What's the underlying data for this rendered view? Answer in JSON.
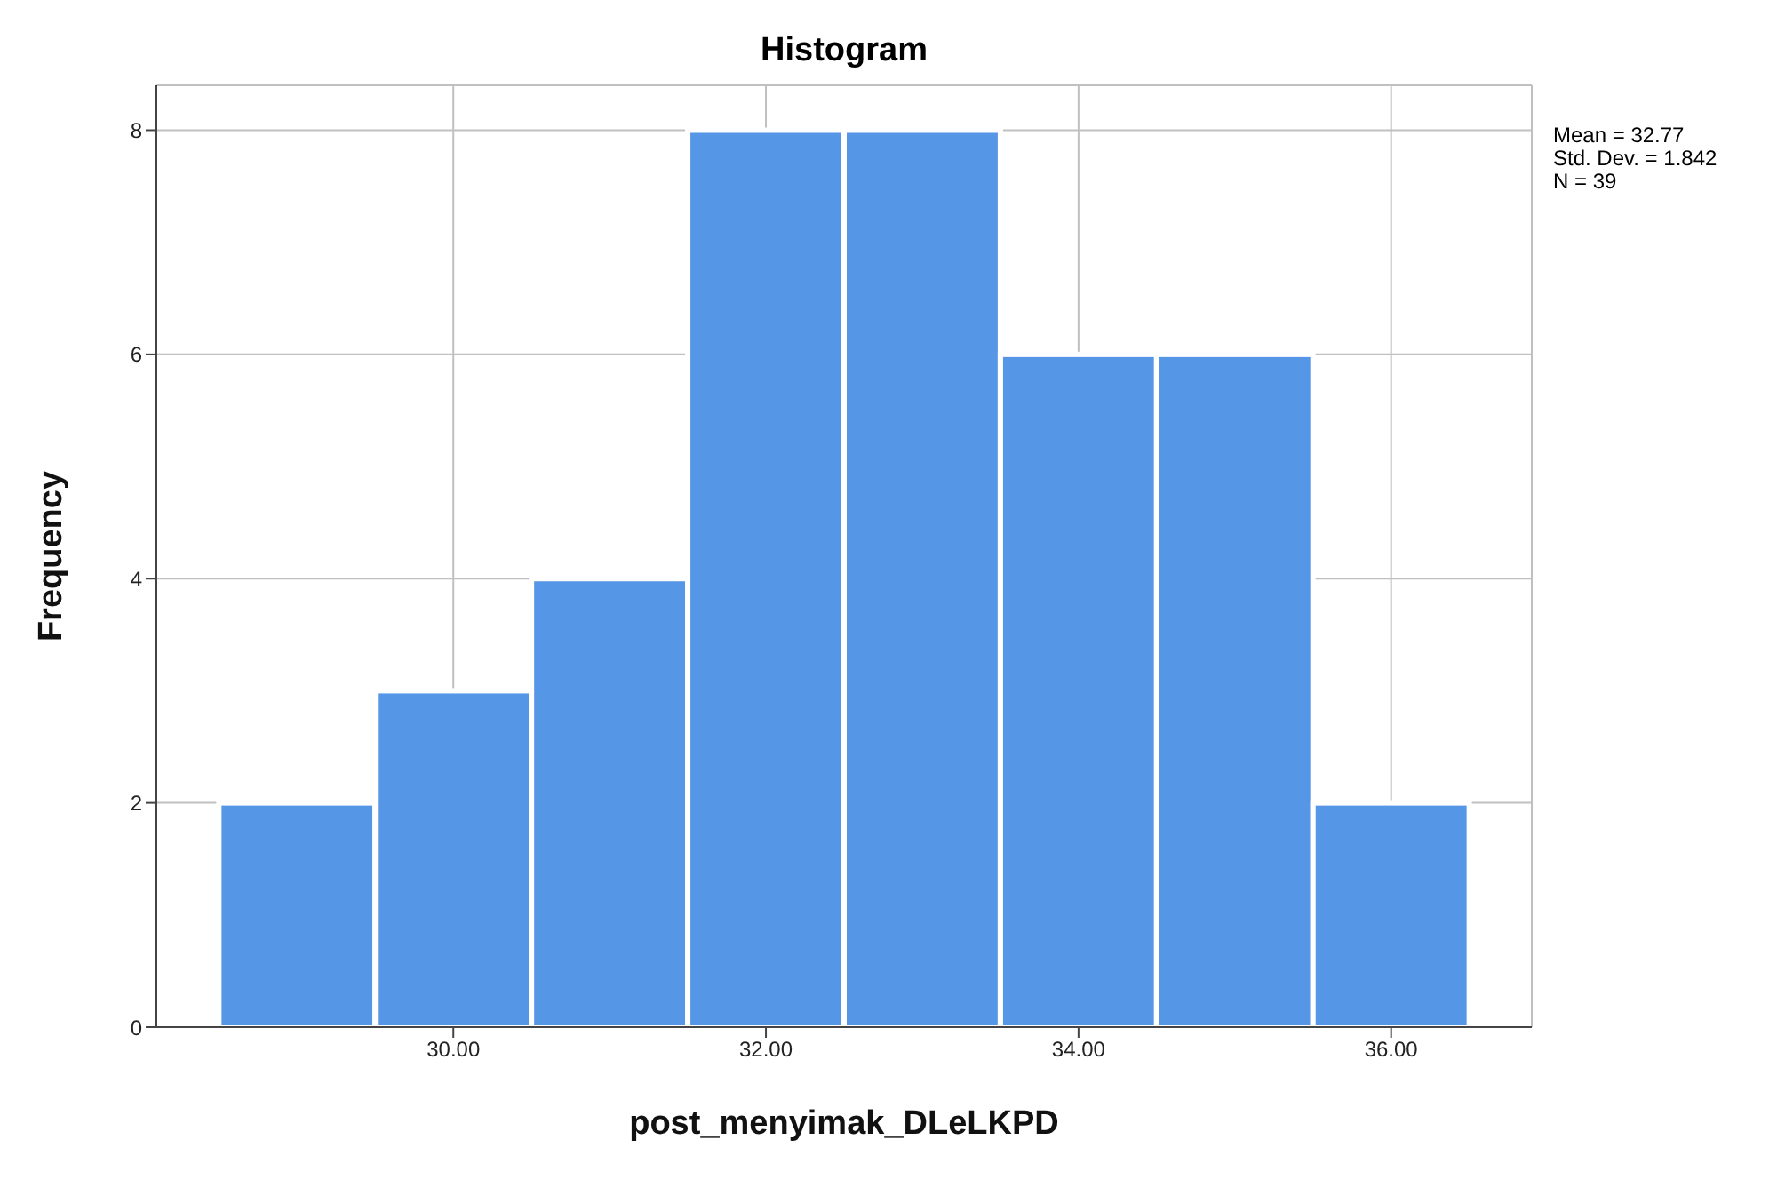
{
  "chart_data": {
    "type": "histogram",
    "title": "Histogram",
    "xlabel": "post_menyimak_DLeLKPD",
    "ylabel": "Frequency",
    "bins": [
      28.5,
      29.5,
      30.5,
      31.5,
      32.5,
      33.5,
      34.5,
      35.5,
      36.5
    ],
    "values": [
      2,
      3,
      4,
      8,
      8,
      6,
      6,
      2
    ],
    "color": "#5596e6",
    "xlim": [
      28.1,
      36.9
    ],
    "ylim": [
      0,
      8.4
    ],
    "xticks": [
      {
        "value": 30,
        "label": "30.00"
      },
      {
        "value": 32,
        "label": "32.00"
      },
      {
        "value": 34,
        "label": "34.00"
      },
      {
        "value": 36,
        "label": "36.00"
      }
    ],
    "yticks": [
      0,
      2,
      4,
      6,
      8
    ],
    "grid": true,
    "annotations": [
      "Mean = 32.77",
      "Std. Dev. = 1.842",
      "N = 39"
    ]
  }
}
